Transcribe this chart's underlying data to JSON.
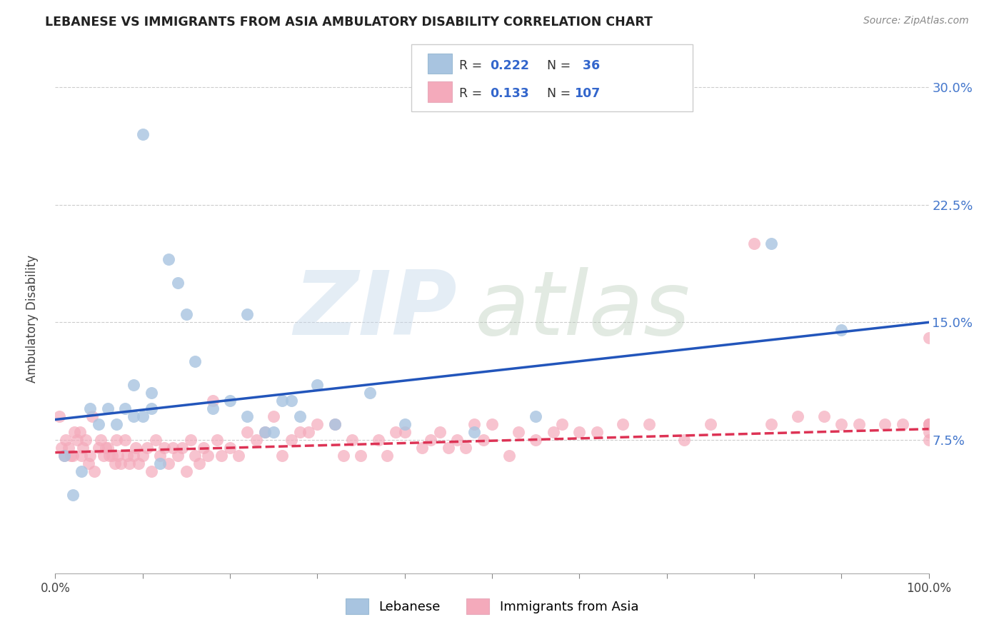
{
  "title": "LEBANESE VS IMMIGRANTS FROM ASIA AMBULATORY DISABILITY CORRELATION CHART",
  "source": "Source: ZipAtlas.com",
  "ylabel": "Ambulatory Disability",
  "yticks": [
    0.075,
    0.15,
    0.225,
    0.3
  ],
  "ytick_labels": [
    "7.5%",
    "15.0%",
    "22.5%",
    "30.0%"
  ],
  "xlim": [
    0.0,
    1.0
  ],
  "ylim": [
    -0.01,
    0.325
  ],
  "legend_label1": "Lebanese",
  "legend_label2": "Immigrants from Asia",
  "blue_color": "#A8C4E0",
  "pink_color": "#F4AABB",
  "line_blue": "#2255BB",
  "line_pink": "#DD3355",
  "blue_r": "0.222",
  "blue_n": "36",
  "pink_r": "0.133",
  "pink_n": "107",
  "blue_scatter_x": [
    0.01,
    0.02,
    0.03,
    0.04,
    0.05,
    0.06,
    0.07,
    0.08,
    0.09,
    0.09,
    0.1,
    0.1,
    0.11,
    0.11,
    0.12,
    0.13,
    0.14,
    0.15,
    0.16,
    0.18,
    0.2,
    0.22,
    0.22,
    0.24,
    0.25,
    0.26,
    0.27,
    0.28,
    0.3,
    0.32,
    0.36,
    0.4,
    0.48,
    0.55,
    0.82,
    0.9
  ],
  "blue_scatter_y": [
    0.065,
    0.04,
    0.055,
    0.095,
    0.085,
    0.095,
    0.085,
    0.095,
    0.09,
    0.11,
    0.09,
    0.27,
    0.095,
    0.105,
    0.06,
    0.19,
    0.175,
    0.155,
    0.125,
    0.095,
    0.1,
    0.09,
    0.155,
    0.08,
    0.08,
    0.1,
    0.1,
    0.09,
    0.11,
    0.085,
    0.105,
    0.085,
    0.08,
    0.09,
    0.2,
    0.145
  ],
  "pink_scatter_x": [
    0.005,
    0.007,
    0.01,
    0.012,
    0.015,
    0.018,
    0.02,
    0.022,
    0.025,
    0.028,
    0.03,
    0.032,
    0.035,
    0.038,
    0.04,
    0.042,
    0.045,
    0.05,
    0.052,
    0.055,
    0.058,
    0.06,
    0.062,
    0.065,
    0.068,
    0.07,
    0.072,
    0.075,
    0.08,
    0.082,
    0.085,
    0.09,
    0.092,
    0.095,
    0.1,
    0.105,
    0.11,
    0.115,
    0.12,
    0.125,
    0.13,
    0.135,
    0.14,
    0.145,
    0.15,
    0.155,
    0.16,
    0.165,
    0.17,
    0.175,
    0.18,
    0.185,
    0.19,
    0.2,
    0.21,
    0.22,
    0.23,
    0.24,
    0.25,
    0.26,
    0.27,
    0.28,
    0.29,
    0.3,
    0.32,
    0.33,
    0.34,
    0.35,
    0.37,
    0.38,
    0.39,
    0.4,
    0.42,
    0.43,
    0.44,
    0.45,
    0.46,
    0.47,
    0.48,
    0.49,
    0.5,
    0.52,
    0.53,
    0.55,
    0.57,
    0.58,
    0.6,
    0.62,
    0.65,
    0.68,
    0.72,
    0.75,
    0.8,
    0.82,
    0.85,
    0.88,
    0.9,
    0.92,
    0.95,
    0.97,
    1.0,
    1.0,
    1.0,
    1.0,
    1.0,
    1.0,
    1.0
  ],
  "pink_scatter_y": [
    0.09,
    0.07,
    0.065,
    0.075,
    0.07,
    0.065,
    0.065,
    0.08,
    0.075,
    0.08,
    0.065,
    0.07,
    0.075,
    0.06,
    0.065,
    0.09,
    0.055,
    0.07,
    0.075,
    0.065,
    0.07,
    0.07,
    0.065,
    0.065,
    0.06,
    0.075,
    0.065,
    0.06,
    0.075,
    0.065,
    0.06,
    0.065,
    0.07,
    0.06,
    0.065,
    0.07,
    0.055,
    0.075,
    0.065,
    0.07,
    0.06,
    0.07,
    0.065,
    0.07,
    0.055,
    0.075,
    0.065,
    0.06,
    0.07,
    0.065,
    0.1,
    0.075,
    0.065,
    0.07,
    0.065,
    0.08,
    0.075,
    0.08,
    0.09,
    0.065,
    0.075,
    0.08,
    0.08,
    0.085,
    0.085,
    0.065,
    0.075,
    0.065,
    0.075,
    0.065,
    0.08,
    0.08,
    0.07,
    0.075,
    0.08,
    0.07,
    0.075,
    0.07,
    0.085,
    0.075,
    0.085,
    0.065,
    0.08,
    0.075,
    0.08,
    0.085,
    0.08,
    0.08,
    0.085,
    0.085,
    0.075,
    0.085,
    0.2,
    0.085,
    0.09,
    0.09,
    0.085,
    0.085,
    0.085,
    0.085,
    0.085,
    0.085,
    0.08,
    0.075,
    0.085,
    0.14,
    0.085
  ],
  "blue_line_x0": 0.0,
  "blue_line_y0": 0.088,
  "blue_line_x1": 1.0,
  "blue_line_y1": 0.15,
  "pink_line_x0": 0.0,
  "pink_line_y0": 0.067,
  "pink_line_x1": 1.0,
  "pink_line_y1": 0.082
}
